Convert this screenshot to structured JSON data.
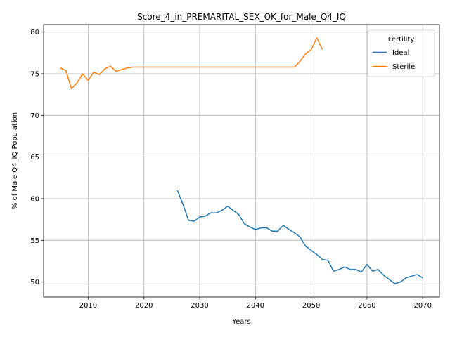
{
  "chart_data": {
    "type": "line",
    "title": "Score_4_in_PREMARITAL_SEX_OK_for_Male_Q4_IQ",
    "xlabel": "Years",
    "ylabel": "% of Male Q4_IQ Population",
    "xlim": [
      2002,
      2073
    ],
    "ylim": [
      48.2,
      80.9
    ],
    "xticks": [
      2010,
      2020,
      2030,
      2040,
      2050,
      2060,
      2070
    ],
    "yticks": [
      50,
      55,
      60,
      65,
      70,
      75,
      80
    ],
    "grid": true,
    "legend": {
      "title": "Fertility",
      "position": "top-right"
    },
    "series": [
      {
        "name": "Ideal",
        "color": "#1f77b4",
        "x": [
          2026,
          2027,
          2028,
          2029,
          2030,
          2031,
          2032,
          2033,
          2034,
          2035,
          2036,
          2037,
          2038,
          2039,
          2040,
          2041,
          2042,
          2043,
          2044,
          2045,
          2046,
          2047,
          2048,
          2049,
          2050,
          2051,
          2052,
          2053,
          2054,
          2055,
          2056,
          2057,
          2058,
          2059,
          2060,
          2061,
          2062,
          2063,
          2064,
          2065,
          2066,
          2067,
          2068,
          2069,
          2070
        ],
        "y": [
          61.0,
          59.3,
          57.4,
          57.3,
          57.8,
          57.9,
          58.3,
          58.3,
          58.6,
          59.1,
          58.6,
          58.1,
          57.0,
          56.6,
          56.3,
          56.5,
          56.5,
          56.1,
          56.1,
          56.8,
          56.3,
          55.9,
          55.4,
          54.3,
          53.8,
          53.3,
          52.7,
          52.6,
          51.3,
          51.5,
          51.8,
          51.5,
          51.5,
          51.2,
          52.1,
          51.3,
          51.5,
          50.8,
          50.3,
          49.8,
          50.0,
          50.5,
          50.7,
          50.9,
          50.5
        ]
      },
      {
        "name": "Sterile",
        "color": "#ff7f0e",
        "x": [
          2005,
          2006,
          2007,
          2008,
          2009,
          2010,
          2011,
          2012,
          2013,
          2014,
          2015,
          2016,
          2017,
          2018,
          2019,
          2020,
          2021,
          2022,
          2023,
          2024,
          2025,
          2026,
          2027,
          2028,
          2029,
          2030,
          2031,
          2032,
          2033,
          2034,
          2035,
          2036,
          2037,
          2038,
          2039,
          2040,
          2041,
          2042,
          2043,
          2044,
          2045,
          2046,
          2047,
          2048,
          2049,
          2050,
          2051,
          2052
        ],
        "y": [
          75.7,
          75.4,
          73.2,
          73.9,
          75.0,
          74.2,
          75.2,
          74.9,
          75.6,
          75.9,
          75.3,
          75.5,
          75.7,
          75.8,
          75.8,
          75.8,
          75.8,
          75.8,
          75.8,
          75.8,
          75.8,
          75.8,
          75.8,
          75.8,
          75.8,
          75.8,
          75.8,
          75.8,
          75.8,
          75.8,
          75.8,
          75.8,
          75.8,
          75.8,
          75.8,
          75.8,
          75.8,
          75.8,
          75.8,
          75.8,
          75.8,
          75.8,
          75.8,
          76.5,
          77.4,
          77.9,
          79.3,
          77.9
        ]
      }
    ]
  }
}
